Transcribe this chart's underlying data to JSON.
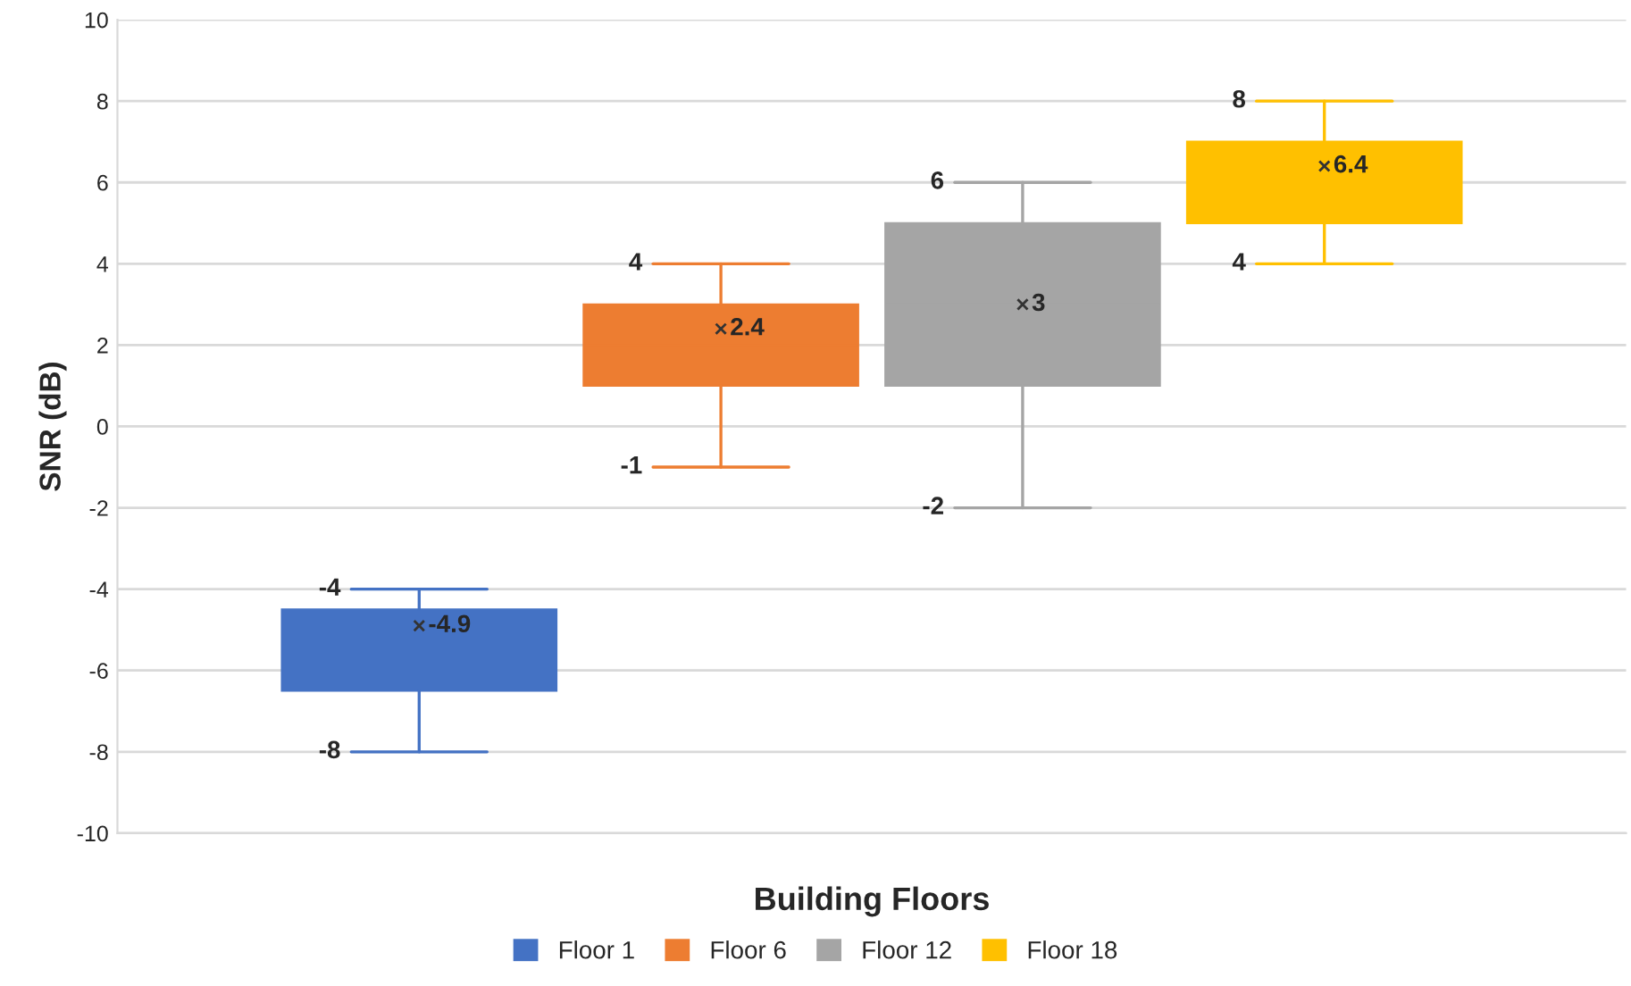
{
  "chart_data": {
    "type": "box",
    "xlabel": "Building Floors",
    "ylabel": "SNR (dB)",
    "categories": [
      null
    ],
    "series": [
      {
        "name": "Floor 1",
        "color": "#4472c4",
        "boxes": [
          {
            "low": -8,
            "q1": -6.5,
            "median": -5,
            "q3": -4.5,
            "high": -4,
            "mean": -4.9
          }
        ]
      },
      {
        "name": "Floor 6",
        "color": "#ed7d31",
        "boxes": [
          {
            "low": -1,
            "q1": 1,
            "median": 2,
            "q3": 3,
            "high": 4,
            "mean": 2.4
          }
        ]
      },
      {
        "name": "Floor 12",
        "color": "#a5a5a5",
        "boxes": [
          {
            "low": -2,
            "q1": 1,
            "median": 3,
            "q3": 5,
            "high": 6,
            "mean": 3
          }
        ]
      },
      {
        "name": "Floor 18",
        "color": "#ffc000",
        "boxes": [
          {
            "low": 4,
            "q1": 5,
            "median": 6,
            "q3": 7,
            "high": 8,
            "mean": 6.4
          }
        ]
      }
    ],
    "annotations": [
      "-4",
      "-4.9",
      "-8",
      "4",
      "2.4",
      "-1",
      "6",
      "3",
      "-2",
      "8",
      "6.4",
      "4"
    ],
    "ylim": [
      -10,
      10
    ],
    "yticks": [
      -10,
      -8,
      -6,
      -4,
      -2,
      0,
      2,
      4,
      6,
      8,
      10
    ],
    "grid": "y",
    "legend": "bottom",
    "marker": "cross"
  }
}
